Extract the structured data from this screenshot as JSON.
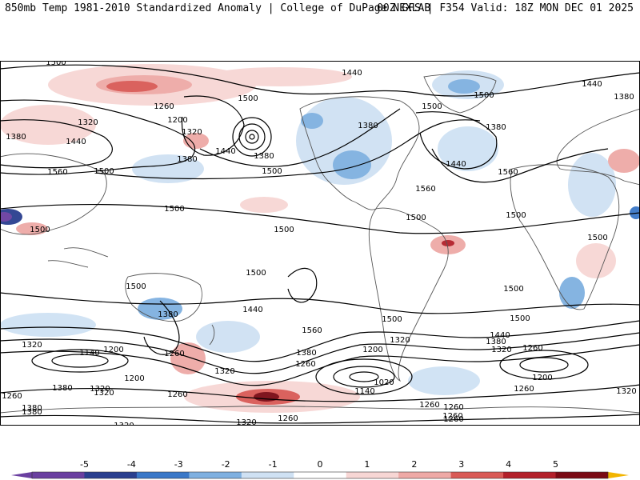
{
  "header": {
    "left": "850mb Temp 1981-2010 Standardized Anomaly | College of DuPage NEXLAB",
    "right": "00Z GFS | F354 Valid: 18Z MON DEC 01 2025"
  },
  "colors": {
    "neg5": "#6a3fa0",
    "neg4": "#2a3f8f",
    "neg3": "#3a78c8",
    "neg2": "#7fb0e0",
    "neg1": "#cfe1f3",
    "pos1": "#f7d6d4",
    "pos2": "#eea9a6",
    "pos3": "#d95a56",
    "pos4": "#b3202a",
    "pos5": "#7a0a14",
    "extreme_hot": "#f2b400",
    "land": "#555555",
    "contour": "#000000"
  },
  "colorbar": {
    "ticks": [
      "-5",
      "-4",
      "-3",
      "-2",
      "-1",
      "0",
      "1",
      "2",
      "3",
      "4",
      "5"
    ]
  },
  "contour_labels": [
    "1500",
    "1500",
    "1440",
    "1440",
    "1380",
    "1500",
    "1260",
    "1200",
    "1320",
    "1320",
    "1440",
    "1380",
    "1380",
    "1500",
    "1560",
    "1500",
    "1380",
    "1380",
    "1500",
    "1440",
    "1380",
    "1440",
    "1500",
    "1560",
    "1500",
    "1500",
    "1560",
    "1500",
    "1500",
    "1500",
    "1500",
    "1500",
    "1500",
    "1500",
    "1380",
    "1440",
    "1320",
    "1200",
    "1140",
    "1260",
    "1320",
    "1200",
    "1260",
    "1380",
    "1320",
    "1260",
    "1380",
    "1320",
    "1260",
    "1320",
    "1260",
    "1260",
    "1560",
    "1500",
    "1380",
    "1200",
    "1260",
    "1020",
    "1140",
    "1320",
    "1260",
    "1500",
    "1440",
    "1380",
    "1320",
    "1260",
    "1200",
    "1260",
    "1320",
    "1320",
    "1380",
    "1260"
  ]
}
